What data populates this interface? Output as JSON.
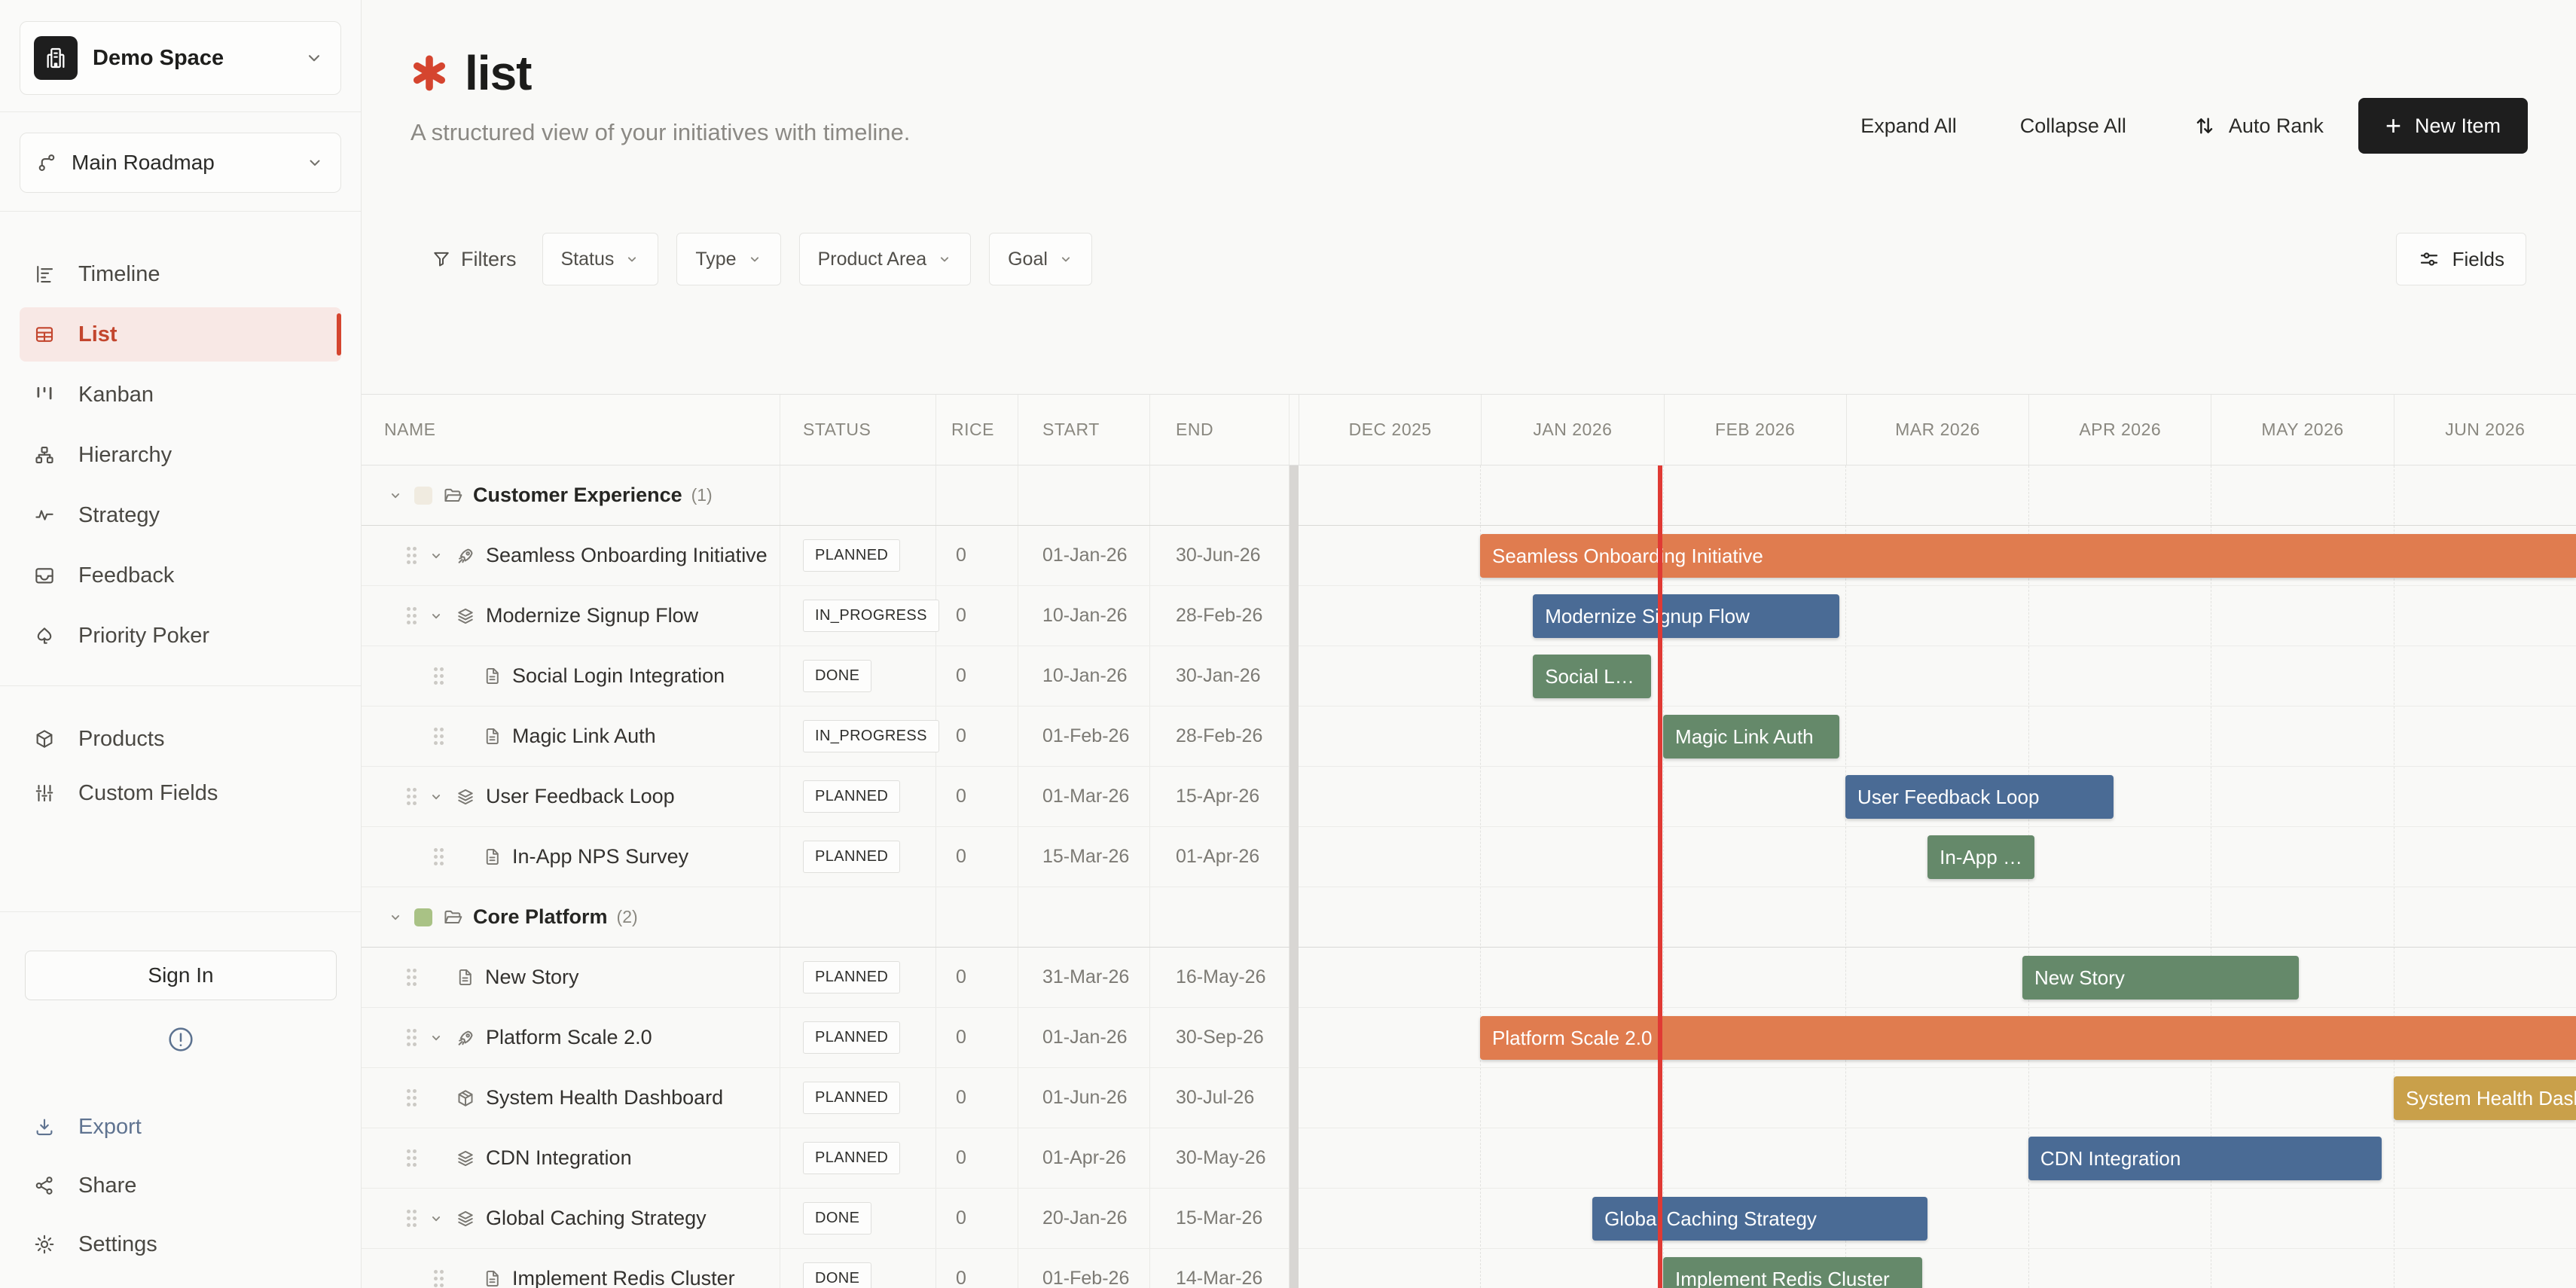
{
  "sidebar": {
    "space_label": "Demo Space",
    "roadmap_label": "Main Roadmap",
    "nav": [
      {
        "label": "Timeline",
        "icon": "timeline-icon",
        "active": false
      },
      {
        "label": "List",
        "icon": "list-icon",
        "active": true
      },
      {
        "label": "Kanban",
        "icon": "kanban-icon",
        "active": false
      },
      {
        "label": "Hierarchy",
        "icon": "hierarchy-icon",
        "active": false
      },
      {
        "label": "Strategy",
        "icon": "strategy-icon",
        "active": false
      },
      {
        "label": "Feedback",
        "icon": "feedback-icon",
        "active": false
      },
      {
        "label": "Priority Poker",
        "icon": "spade-icon",
        "active": false
      }
    ],
    "nav_secondary": [
      {
        "label": "Products",
        "icon": "products-icon"
      },
      {
        "label": "Custom Fields",
        "icon": "custom-fields-icon"
      }
    ],
    "sign_in_label": "Sign In",
    "footer": [
      {
        "label": "Export",
        "icon": "export-icon"
      },
      {
        "label": "Share",
        "icon": "share-icon"
      },
      {
        "label": "Settings",
        "icon": "settings-icon"
      }
    ]
  },
  "header": {
    "title": "list",
    "subtitle": "A structured view of your initiatives with timeline.",
    "expand_all": "Expand All",
    "collapse_all": "Collapse All",
    "auto_rank": "Auto Rank",
    "new_item": "New Item"
  },
  "filters": {
    "label": "Filters",
    "dropdowns": [
      {
        "label": "Status"
      },
      {
        "label": "Type"
      },
      {
        "label": "Product Area"
      },
      {
        "label": "Goal"
      }
    ],
    "fields_label": "Fields"
  },
  "table": {
    "columns": [
      "NAME",
      "STATUS",
      "RICE",
      "START",
      "END"
    ],
    "months": [
      "DEC 2025",
      "JAN 2026",
      "FEB 2026",
      "MAR 2026",
      "APR 2026",
      "MAY 2026",
      "JUN 2026"
    ]
  },
  "timeline": {
    "today_pct": 28.3,
    "today_color": "#E03A34",
    "month_boundary_pcts": [
      14.21,
      28.54,
      42.81,
      57.13,
      71.4,
      85.73
    ]
  },
  "colors": {
    "accent_red": "#C3462E",
    "bar_orange": "#E07C4F",
    "bar_blue": "#4A6B95",
    "bar_green": "#65896A",
    "bar_gold": "#C9A04A",
    "new_item_bg": "#1E1E1E"
  },
  "rows": [
    {
      "type": "group",
      "name": "Customer Experience",
      "count": "(1)",
      "swatch": "#F0EBE0"
    },
    {
      "type": "item",
      "level": 1,
      "chevron": true,
      "icon": "rocket-icon",
      "name": "Seamless Onboarding Initiative",
      "status": "PLANNED",
      "rice": "0",
      "start": "01-Jan-26",
      "end": "30-Jun-26",
      "bar": {
        "left_pct": 14.21,
        "width_pct": 85.79,
        "color": "#E07C4F",
        "cut": true
      }
    },
    {
      "type": "item",
      "level": 1,
      "chevron": true,
      "icon": "layers-icon",
      "name": "Modernize Signup Flow",
      "status": "IN_PROGRESS",
      "rice": "0",
      "start": "10-Jan-26",
      "end": "28-Feb-26",
      "bar": {
        "left_pct": 18.35,
        "width_pct": 23.99,
        "color": "#4A6B95"
      }
    },
    {
      "type": "item",
      "level": 2,
      "chevron": false,
      "icon": "document-icon",
      "name": "Social Login Integration",
      "status": "DONE",
      "rice": "0",
      "start": "10-Jan-26",
      "end": "30-Jan-26",
      "bar": {
        "left_pct": 18.35,
        "width_pct": 9.24,
        "color": "#65896A"
      }
    },
    {
      "type": "item",
      "level": 2,
      "chevron": false,
      "icon": "document-icon",
      "name": "Magic Link Auth",
      "status": "IN_PROGRESS",
      "rice": "0",
      "start": "01-Feb-26",
      "end": "28-Feb-26",
      "bar": {
        "left_pct": 28.54,
        "width_pct": 13.8,
        "color": "#65896A"
      }
    },
    {
      "type": "item",
      "level": 1,
      "chevron": true,
      "icon": "layers-icon",
      "name": "User Feedback Loop",
      "status": "PLANNED",
      "rice": "0",
      "start": "01-Mar-26",
      "end": "15-Apr-26",
      "bar": {
        "left_pct": 42.81,
        "width_pct": 20.99,
        "color": "#4A6B95"
      }
    },
    {
      "type": "item",
      "level": 2,
      "chevron": false,
      "icon": "document-icon",
      "name": "In-App NPS Survey",
      "status": "PLANNED",
      "rice": "0",
      "start": "15-Mar-26",
      "end": "01-Apr-26",
      "bar": {
        "left_pct": 49.24,
        "width_pct": 8.37,
        "color": "#65896A"
      }
    },
    {
      "type": "group",
      "name": "Core Platform",
      "count": "(2)",
      "swatch": "#A9C285"
    },
    {
      "type": "item",
      "level": 1,
      "chevron": false,
      "icon": "document-icon",
      "name": "New Story",
      "status": "PLANNED",
      "rice": "0",
      "start": "31-Mar-26",
      "end": "16-May-26",
      "bar": {
        "left_pct": 56.66,
        "width_pct": 21.64,
        "color": "#65896A"
      }
    },
    {
      "type": "item",
      "level": 1,
      "chevron": true,
      "icon": "rocket-icon",
      "name": "Platform Scale 2.0",
      "status": "PLANNED",
      "rice": "0",
      "start": "01-Jan-26",
      "end": "30-Sep-26",
      "bar": {
        "left_pct": 14.21,
        "width_pct": 85.79,
        "color": "#E07C4F",
        "cut": true
      }
    },
    {
      "type": "item",
      "level": 1,
      "chevron": false,
      "icon": "package-icon",
      "name": "System Health Dashboard",
      "status": "PLANNED",
      "rice": "0",
      "start": "01-Jun-26",
      "end": "30-Jul-26",
      "bar": {
        "left_pct": 85.73,
        "width_pct": 14.27,
        "color": "#C9A04A",
        "cut": true
      }
    },
    {
      "type": "item",
      "level": 1,
      "chevron": false,
      "icon": "layers-icon",
      "name": "CDN Integration",
      "status": "PLANNED",
      "rice": "0",
      "start": "01-Apr-26",
      "end": "30-May-26",
      "bar": {
        "left_pct": 57.13,
        "width_pct": 27.67,
        "color": "#4A6B95"
      }
    },
    {
      "type": "item",
      "level": 1,
      "chevron": true,
      "icon": "layers-icon",
      "name": "Global Caching Strategy",
      "status": "DONE",
      "rice": "0",
      "start": "20-Jan-26",
      "end": "15-Mar-26",
      "bar": {
        "left_pct": 23.0,
        "width_pct": 26.24,
        "color": "#4A6B95"
      }
    },
    {
      "type": "item",
      "level": 2,
      "chevron": false,
      "icon": "document-icon",
      "name": "Implement Redis Cluster",
      "status": "DONE",
      "rice": "0",
      "start": "01-Feb-26",
      "end": "14-Mar-26",
      "bar": {
        "left_pct": 28.54,
        "width_pct": 20.28,
        "color": "#65896A"
      }
    }
  ]
}
